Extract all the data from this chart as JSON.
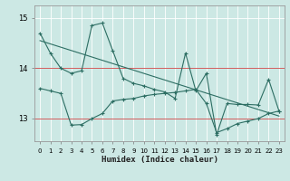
{
  "xlabel": "Humidex (Indice chaleur)",
  "bg_color": "#cce8e4",
  "line_color": "#2d6e63",
  "grid_color": "#ffffff",
  "hline_color": "#cc4444",
  "x": [
    0,
    1,
    2,
    3,
    4,
    5,
    6,
    7,
    8,
    9,
    10,
    11,
    12,
    13,
    14,
    15,
    16,
    17,
    18,
    19,
    20,
    21,
    22,
    23
  ],
  "series1": [
    14.7,
    14.3,
    14.0,
    13.9,
    13.95,
    14.85,
    14.9,
    14.35,
    13.8,
    13.7,
    13.65,
    13.58,
    13.53,
    13.4,
    14.3,
    13.55,
    13.9,
    12.68,
    13.3,
    13.28,
    13.28,
    13.27,
    13.78,
    13.15
  ],
  "series2": [
    13.6,
    13.55,
    13.5,
    12.87,
    12.88,
    13.0,
    13.1,
    13.35,
    13.38,
    13.4,
    13.45,
    13.48,
    13.5,
    13.52,
    13.55,
    13.58,
    13.3,
    12.72,
    12.8,
    12.9,
    12.95,
    13.0,
    13.1,
    13.15
  ],
  "series3_x": [
    0,
    23
  ],
  "series3_y": [
    14.55,
    13.05
  ],
  "ytick_vals": [
    13,
    14,
    15
  ],
  "ylim": [
    12.55,
    15.25
  ],
  "xlim": [
    -0.5,
    23.5
  ]
}
